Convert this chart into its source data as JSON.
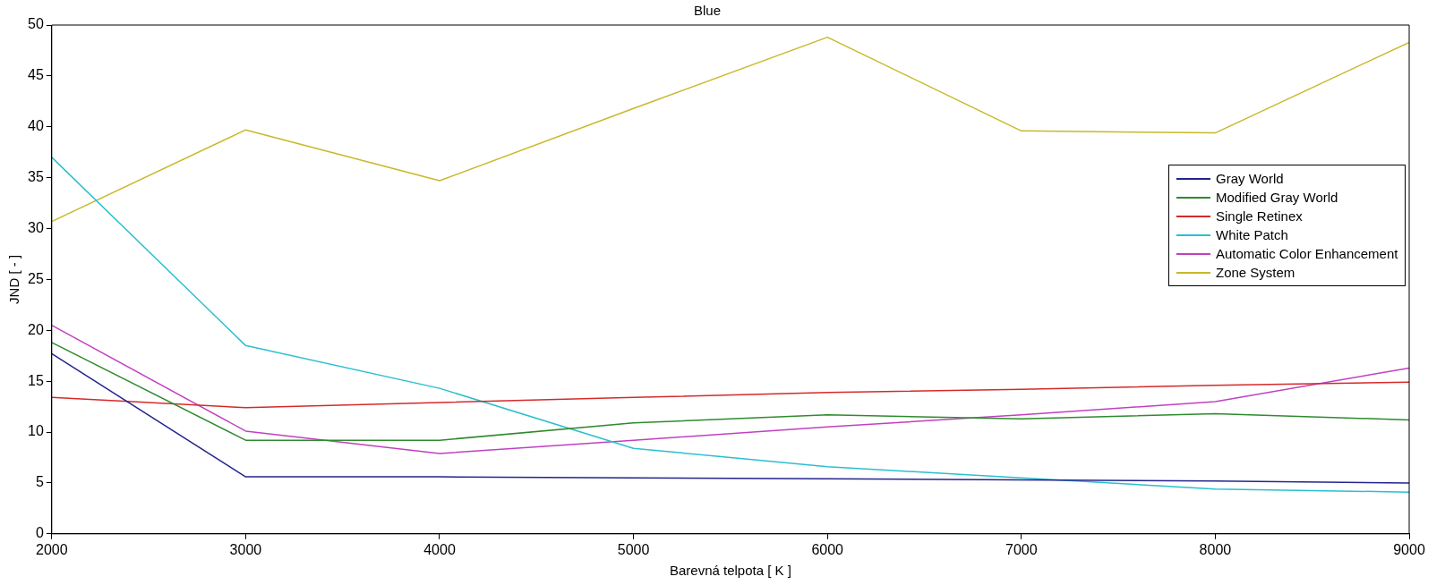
{
  "chart_data": {
    "type": "line",
    "title": "Blue",
    "xlabel": "Barevná telpota [ K ]",
    "ylabel": "JND [ - ]",
    "x": [
      2000,
      3000,
      4000,
      5000,
      6000,
      7000,
      8000,
      9000
    ],
    "xlim": [
      2000,
      9000
    ],
    "xticks": [
      2000,
      3000,
      4000,
      5000,
      6000,
      7000,
      8000,
      9000
    ],
    "ylim": [
      0,
      50
    ],
    "yticks": [
      0,
      5,
      10,
      15,
      20,
      25,
      30,
      35,
      40,
      45,
      50
    ],
    "grid": false,
    "legend": "right",
    "marker": "none",
    "line_style": "solid",
    "series": [
      {
        "name": "Gray World",
        "color": "#24248c",
        "values": [
          17.7,
          5.6,
          5.6,
          5.5,
          5.4,
          5.3,
          5.2,
          5.0
        ]
      },
      {
        "name": "Modified Gray World",
        "color": "#2e8b2e",
        "values": [
          18.8,
          9.2,
          9.2,
          10.9,
          11.7,
          11.3,
          11.8,
          11.2
        ]
      },
      {
        "name": "Single Retinex",
        "color": "#d42a2a",
        "values": [
          13.4,
          12.4,
          12.9,
          13.4,
          13.9,
          14.2,
          14.6,
          14.9
        ]
      },
      {
        "name": "White Patch",
        "color": "#2bbfcf",
        "values": [
          37,
          18.5,
          14.3,
          8.4,
          6.6,
          5.5,
          4.4,
          4.1
        ]
      },
      {
        "name": "Automatic Color Enhancement",
        "color": "#c040c0",
        "values": [
          20.5,
          10.1,
          7.9,
          9.2,
          10.5,
          11.7,
          13,
          16.3
        ]
      },
      {
        "name": "Zone System",
        "color": "#c8b82a",
        "values": [
          30.7,
          39.7,
          34.7,
          41.8,
          48.8,
          39.6,
          39.4,
          48.3
        ]
      }
    ]
  }
}
